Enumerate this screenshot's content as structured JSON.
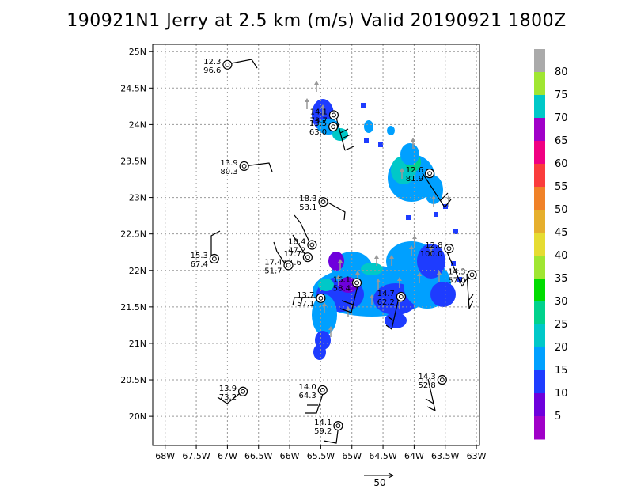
{
  "chart_data": {
    "type": "heatmap",
    "title": "190921N1 Jerry at 2.5 km (m/s) Valid 20190921  1800Z",
    "xlim": [
      -68.2,
      -62.95
    ],
    "ylim": [
      19.6,
      25.1
    ],
    "grid": true,
    "x_ticks": [
      {
        "v": -68,
        "label": "68W"
      },
      {
        "v": -67.5,
        "label": "67.5W"
      },
      {
        "v": -67,
        "label": "67W"
      },
      {
        "v": -66.5,
        "label": "66.5W"
      },
      {
        "v": -66,
        "label": "66W"
      },
      {
        "v": -65.5,
        "label": "65.5W"
      },
      {
        "v": -65,
        "label": "65W"
      },
      {
        "v": -64.5,
        "label": "64.5W"
      },
      {
        "v": -64,
        "label": "64W"
      },
      {
        "v": -63.5,
        "label": "63.5W"
      },
      {
        "v": -63,
        "label": "63W"
      }
    ],
    "y_ticks": [
      {
        "v": 20,
        "label": "20N"
      },
      {
        "v": 20.5,
        "label": "20.5N"
      },
      {
        "v": 21,
        "label": "21N"
      },
      {
        "v": 21.5,
        "label": "21.5N"
      },
      {
        "v": 22,
        "label": "22N"
      },
      {
        "v": 22.5,
        "label": "22.5N"
      },
      {
        "v": 23,
        "label": "23N"
      },
      {
        "v": 23.5,
        "label": "23.5N"
      },
      {
        "v": 24,
        "label": "24N"
      },
      {
        "v": 24.5,
        "label": "24.5N"
      },
      {
        "v": 25,
        "label": "25N"
      }
    ],
    "colorbar": {
      "levels": [
        "5",
        "10",
        "15",
        "20",
        "25",
        "30",
        "35",
        "40",
        "45",
        "50",
        "55",
        "60",
        "65",
        "70",
        "75",
        "80"
      ],
      "colors": [
        "#a000c8",
        "#6e00dc",
        "#1e3cff",
        "#00a0ff",
        "#00c8c8",
        "#00d28c",
        "#00dc00",
        "#a0e632",
        "#e6dc32",
        "#e6af2d",
        "#f08228",
        "#fa3c3c",
        "#f00082",
        "#a000c8",
        "#00c8c8",
        "#a0e632",
        "#aaaaaa"
      ]
    },
    "dropsondes": [
      {
        "lon": -67.0,
        "lat": 24.82,
        "speed": "12.3",
        "pressure": "96.6"
      },
      {
        "lon": -65.29,
        "lat": 24.13,
        "speed": "14.1",
        "pressure": "73.7"
      },
      {
        "lon": -65.3,
        "lat": 23.97,
        "speed": "13.5",
        "pressure": "63.0"
      },
      {
        "lon": -66.73,
        "lat": 23.43,
        "speed": "13.9",
        "pressure": "80.3"
      },
      {
        "lon": -63.75,
        "lat": 23.33,
        "speed": "12.6",
        "pressure": "81.9"
      },
      {
        "lon": -65.46,
        "lat": 22.94,
        "speed": "18.3",
        "pressure": "53.1"
      },
      {
        "lon": -65.64,
        "lat": 22.35,
        "speed": "18.4",
        "pressure": "47.2"
      },
      {
        "lon": -63.44,
        "lat": 22.3,
        "speed": "12.8",
        "pressure": "100.0"
      },
      {
        "lon": -65.71,
        "lat": 22.18,
        "speed": "17.7",
        "pressure": "51.6"
      },
      {
        "lon": -66.02,
        "lat": 22.07,
        "speed": "17.4",
        "pressure": "51.7"
      },
      {
        "lon": -67.21,
        "lat": 22.16,
        "speed": "15.3",
        "pressure": "67.4"
      },
      {
        "lon": -63.07,
        "lat": 21.94,
        "speed": "14.3",
        "pressure": "57.0"
      },
      {
        "lon": -64.92,
        "lat": 21.83,
        "speed": "16.1",
        "pressure": "58.4"
      },
      {
        "lon": -64.21,
        "lat": 21.64,
        "speed": "14.7",
        "pressure": "62.2"
      },
      {
        "lon": -65.5,
        "lat": 21.62,
        "speed": "13.7",
        "pressure": "57.1"
      },
      {
        "lon": -63.55,
        "lat": 20.5,
        "speed": "14.3",
        "pressure": "52.8"
      },
      {
        "lon": -65.47,
        "lat": 20.36,
        "speed": "14.0",
        "pressure": "64.3"
      },
      {
        "lon": -66.75,
        "lat": 20.34,
        "speed": "13.9",
        "pressure": "73.2"
      },
      {
        "lon": -65.22,
        "lat": 19.87,
        "speed": "14.1",
        "pressure": "59.2"
      }
    ],
    "reference_vector": {
      "label": "50"
    }
  }
}
